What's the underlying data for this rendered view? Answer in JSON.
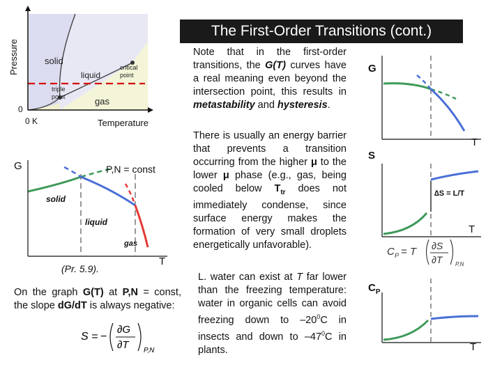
{
  "title": "The First-Order Transitions (cont.)",
  "phase_diagram": {
    "y_label": "Pressure",
    "x_label": "Temperature",
    "origin_zero": "0",
    "origin_kelvin": "0 K",
    "region_solid": "solid",
    "region_liquid": "liquid",
    "region_gas": "gas",
    "triple_point_1": "triple",
    "triple_point_2": "point",
    "critical_point_1": "critical",
    "critical_point_2": "point",
    "colors": {
      "solid": "#dcdcf0",
      "liquid": "#eaeaf6",
      "gas": "#f4f4d8",
      "dashed_line": "#d40000",
      "boundary": "#555555"
    }
  },
  "g_plot": {
    "y_label": "G",
    "condition": "P,N = const",
    "phase_solid": "solid",
    "phase_liquid": "liquid",
    "phase_gas": "gas",
    "x_label": "T",
    "colors": {
      "solid": "#3f9a5a",
      "liquid": "#4a6fd6",
      "gas": "#e53935"
    }
  },
  "reference": "(Pr. 5.9).",
  "slope_note": {
    "part1": "On the graph ",
    "gt": "G(T)",
    "part2": " at ",
    "pn": "P,N",
    "part3": " = const, the slope ",
    "dgdt": "dG/dT",
    "part4": " is always negative:"
  },
  "entropy_formula": {
    "lhs": "S =",
    "numerator": "∂G",
    "denominator": "∂T",
    "subscript": "P,N",
    "sign": "−"
  },
  "metastability_note": {
    "part1": "Note that in the first-order transitions, the ",
    "gt": "G(T)",
    "part2": " curves have a real meaning even beyond the intersection point, this results in ",
    "meta": "metastability",
    "part3": " and ",
    "hyst": "hysteresis",
    "part4": "."
  },
  "barrier_note": {
    "part1": "There is usually an energy barrier that prevents a transition occurring from the higher ",
    "mu1": "μ",
    "part2": " to the lower ",
    "mu2": "μ",
    "part3": " phase (e.g., gas, being cooled below ",
    "t": "T",
    "tr": "tr",
    "part4": " does not immediately condense, since surface energy makes the formation of very small droplets energetically unfavorable)."
  },
  "water_note": {
    "part1": "L. water can exist at ",
    "t": "T",
    "part2": " far lower than the freezing temperature: water in organic cells can avoid freezing down to –20",
    "sup1": "0",
    "part3": "C in insects and down to –47",
    "sup2": "0",
    "part4": "C in plants."
  },
  "right_plots": {
    "g_label": "G",
    "s_label": "S",
    "t_label_1": "T",
    "t_label_2": "T",
    "t_label_3": "T",
    "ds_label": "∆S = L/T",
    "cp_label": "C",
    "cp_sub": "P",
    "cp_formula": {
      "lhs": "C",
      "lhs_sub": "P",
      "eq": "= T",
      "numerator": "∂S",
      "denominator": "∂T",
      "subscript": "P,N"
    }
  }
}
